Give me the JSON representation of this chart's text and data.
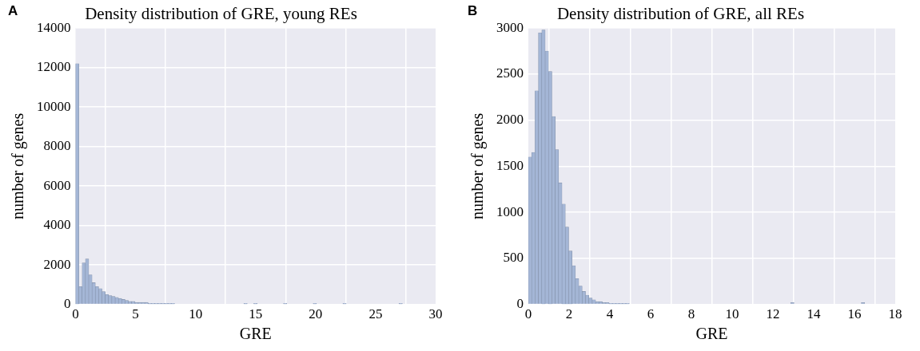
{
  "chart_data": [
    {
      "type": "histogram",
      "title": "Density distribution of GRE, young REs",
      "xlabel": "GRE",
      "ylabel": "number of genes",
      "annotations": [
        "A"
      ],
      "color": "#a4b6d6",
      "bins": [
        0,
        0.275,
        0.55,
        0.825,
        1.1,
        1.375,
        1.65,
        1.925,
        2.2,
        2.475,
        2.75,
        3.025,
        3.3,
        3.575,
        3.85,
        4.125,
        4.4,
        4.675,
        4.95,
        5.225,
        5.5,
        5.775,
        6.05,
        6.325,
        6.6,
        6.875,
        7.15,
        7.425,
        7.7,
        7.975,
        8.25,
        8.525,
        8.8,
        9.075,
        9.35,
        9.625,
        9.9,
        10.175,
        10.45,
        10.725,
        11,
        11.275,
        11.55,
        11.825,
        12.1,
        12.375,
        12.65,
        12.925,
        13.2,
        13.475,
        13.75,
        14.025,
        14.3,
        14.575,
        14.85,
        15.125,
        15.4,
        15.675,
        15.95,
        16.225,
        16.5,
        16.775,
        17.05,
        17.325,
        17.6,
        17.875,
        18.15,
        18.425,
        18.7,
        18.975,
        19.25,
        19.525,
        19.8,
        20.075,
        20.35,
        20.625,
        20.9,
        21.175,
        21.45,
        21.725,
        22,
        22.275,
        22.55,
        22.825,
        23.1,
        23.375,
        23.65,
        23.925,
        24.2,
        24.475,
        24.75,
        25.025,
        25.3,
        25.575,
        25.85,
        26.125,
        26.4,
        26.675,
        26.95,
        27.225,
        27.5
      ],
      "values": [
        12200,
        900,
        2100,
        2300,
        1500,
        1100,
        900,
        800,
        650,
        500,
        450,
        400,
        350,
        300,
        250,
        200,
        150,
        150,
        100,
        100,
        100,
        100,
        50,
        50,
        50,
        50,
        50,
        50,
        50,
        50,
        0,
        0,
        0,
        0,
        0,
        0,
        0,
        0,
        0,
        0,
        0,
        0,
        0,
        0,
        0,
        0,
        0,
        0,
        0,
        0,
        0,
        50,
        0,
        0,
        50,
        0,
        0,
        0,
        0,
        0,
        0,
        0,
        0,
        50,
        0,
        0,
        0,
        0,
        0,
        0,
        0,
        0,
        50,
        0,
        0,
        0,
        0,
        0,
        0,
        0,
        0,
        50,
        0,
        0,
        0,
        0,
        0,
        0,
        0,
        0,
        0,
        0,
        0,
        0,
        0,
        0,
        0,
        0,
        50,
        0
      ],
      "xlim": [
        0,
        30
      ],
      "xticks": [
        0,
        5,
        10,
        15,
        20,
        25,
        30
      ],
      "ylim": [
        0,
        14000
      ],
      "yticks": [
        0,
        2000,
        4000,
        6000,
        8000,
        10000,
        12000,
        14000
      ],
      "grid": true
    },
    {
      "type": "histogram",
      "title": "Density distribution of GRE, all REs",
      "xlabel": "GRE",
      "ylabel": "number of genes",
      "annotations": [
        "B"
      ],
      "color": "#a4b6d6",
      "bins": [
        0,
        0.165,
        0.33,
        0.495,
        0.66,
        0.825,
        0.99,
        1.155,
        1.32,
        1.485,
        1.65,
        1.815,
        1.98,
        2.145,
        2.31,
        2.475,
        2.64,
        2.805,
        2.97,
        3.135,
        3.3,
        3.465,
        3.63,
        3.795,
        3.96,
        4.125,
        4.29,
        4.455,
        4.62,
        4.785,
        4.95,
        5.115,
        5.28,
        5.445,
        5.61,
        5.775,
        5.94,
        6.105,
        6.27,
        6.435,
        6.6,
        6.765,
        6.93,
        7.095,
        7.26,
        7.425,
        7.59,
        7.755,
        7.92,
        8.085,
        8.25,
        8.415,
        8.58,
        8.745,
        8.91,
        9.075,
        9.24,
        9.405,
        9.57,
        9.735,
        9.9,
        10.065,
        10.23,
        10.395,
        10.56,
        10.725,
        10.89,
        11.055,
        11.22,
        11.385,
        11.55,
        11.715,
        11.88,
        12.045,
        12.21,
        12.375,
        12.54,
        12.705,
        12.87,
        13.035,
        13.2,
        13.365,
        13.53,
        13.695,
        13.86,
        14.025,
        14.19,
        14.355,
        14.52,
        14.685,
        14.85,
        15.015,
        15.18,
        15.345,
        15.51,
        15.675,
        15.84,
        16.005,
        16.17,
        16.335,
        16.5
      ],
      "values": [
        1600,
        1650,
        2320,
        2950,
        2980,
        2750,
        2530,
        2040,
        1680,
        1320,
        1090,
        840,
        580,
        420,
        280,
        200,
        140,
        100,
        70,
        50,
        30,
        30,
        20,
        20,
        10,
        10,
        10,
        10,
        10,
        10,
        0,
        0,
        0,
        0,
        0,
        0,
        0,
        0,
        0,
        0,
        0,
        0,
        0,
        0,
        0,
        0,
        0,
        0,
        0,
        0,
        0,
        0,
        0,
        0,
        0,
        0,
        0,
        0,
        0,
        0,
        0,
        0,
        0,
        0,
        0,
        0,
        0,
        0,
        0,
        0,
        0,
        0,
        0,
        0,
        0,
        0,
        0,
        0,
        20,
        0,
        0,
        0,
        0,
        0,
        0,
        0,
        0,
        0,
        0,
        0,
        0,
        0,
        0,
        0,
        0,
        0,
        0,
        0,
        0,
        20
      ],
      "xlim": [
        0,
        18
      ],
      "xticks": [
        0,
        2,
        4,
        6,
        8,
        10,
        12,
        14,
        16,
        18
      ],
      "ylim": [
        0,
        3000
      ],
      "yticks": [
        0,
        500,
        1000,
        1500,
        2000,
        2500,
        3000
      ],
      "grid": true
    }
  ]
}
